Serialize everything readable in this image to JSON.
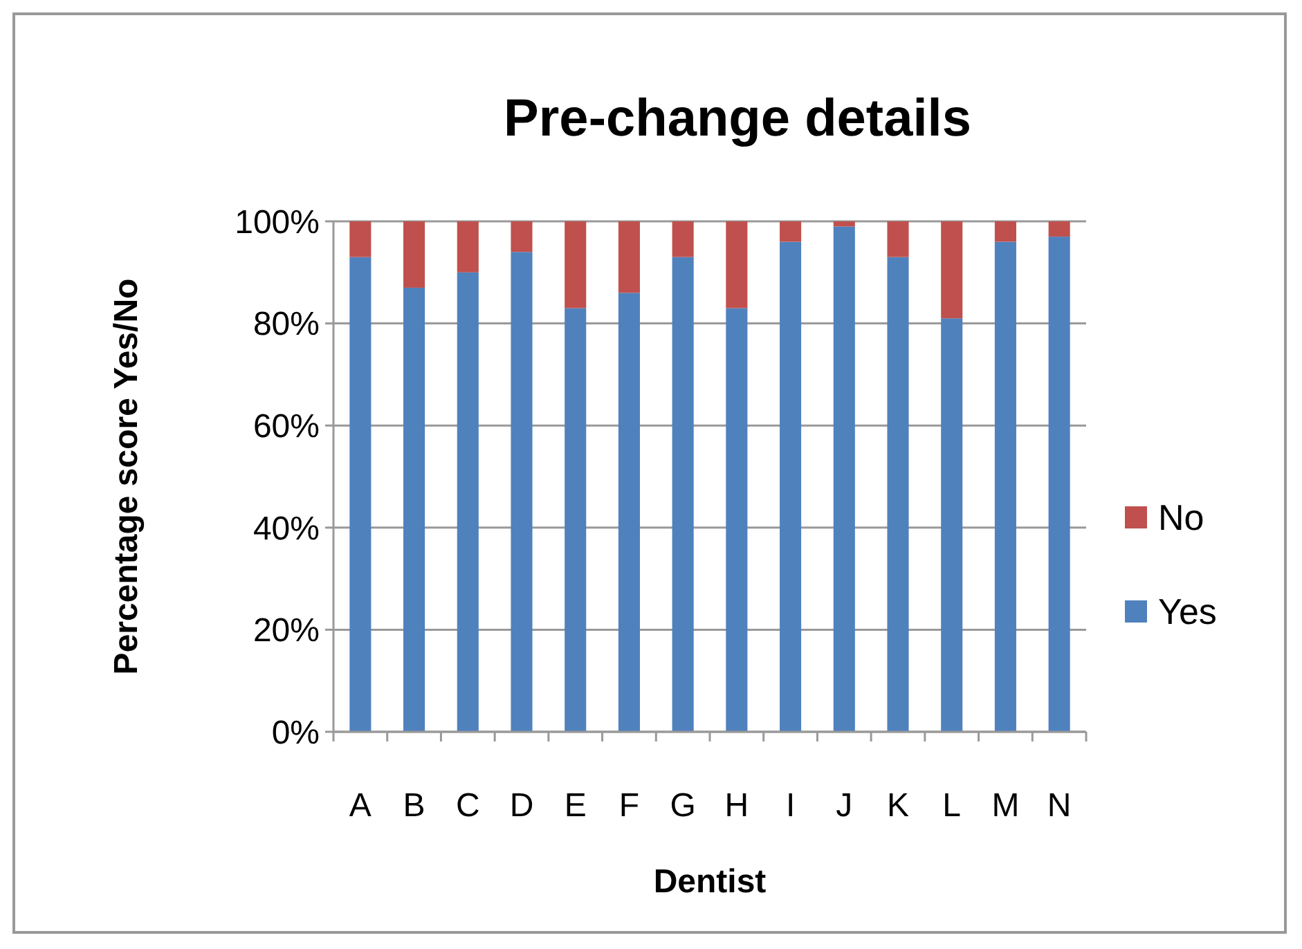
{
  "chart_data": {
    "type": "bar",
    "title": "Pre-change details",
    "xlabel": "Dentist",
    "ylabel": "Percentage score Yes/No",
    "categories": [
      "A",
      "B",
      "C",
      "D",
      "E",
      "F",
      "G",
      "H",
      "I",
      "J",
      "K",
      "L",
      "M",
      "N"
    ],
    "stacked": true,
    "series": [
      {
        "name": "Yes",
        "color": "#4f81bd",
        "values": [
          93,
          87,
          90,
          94,
          83,
          86,
          93,
          83,
          96,
          99,
          93,
          81,
          96,
          97
        ]
      },
      {
        "name": "No",
        "color": "#c0504d",
        "values": [
          7,
          13,
          10,
          6,
          17,
          14,
          7,
          17,
          4,
          1,
          7,
          19,
          4,
          3
        ]
      }
    ],
    "ylim": [
      0,
      100
    ],
    "yticks": [
      {
        "value": 0,
        "label": "0%"
      },
      {
        "value": 20,
        "label": "20%"
      },
      {
        "value": 40,
        "label": "40%"
      },
      {
        "value": 60,
        "label": "60%"
      },
      {
        "value": 80,
        "label": "80%"
      },
      {
        "value": 100,
        "label": "100%"
      }
    ],
    "grid": "y",
    "legend": "right"
  }
}
